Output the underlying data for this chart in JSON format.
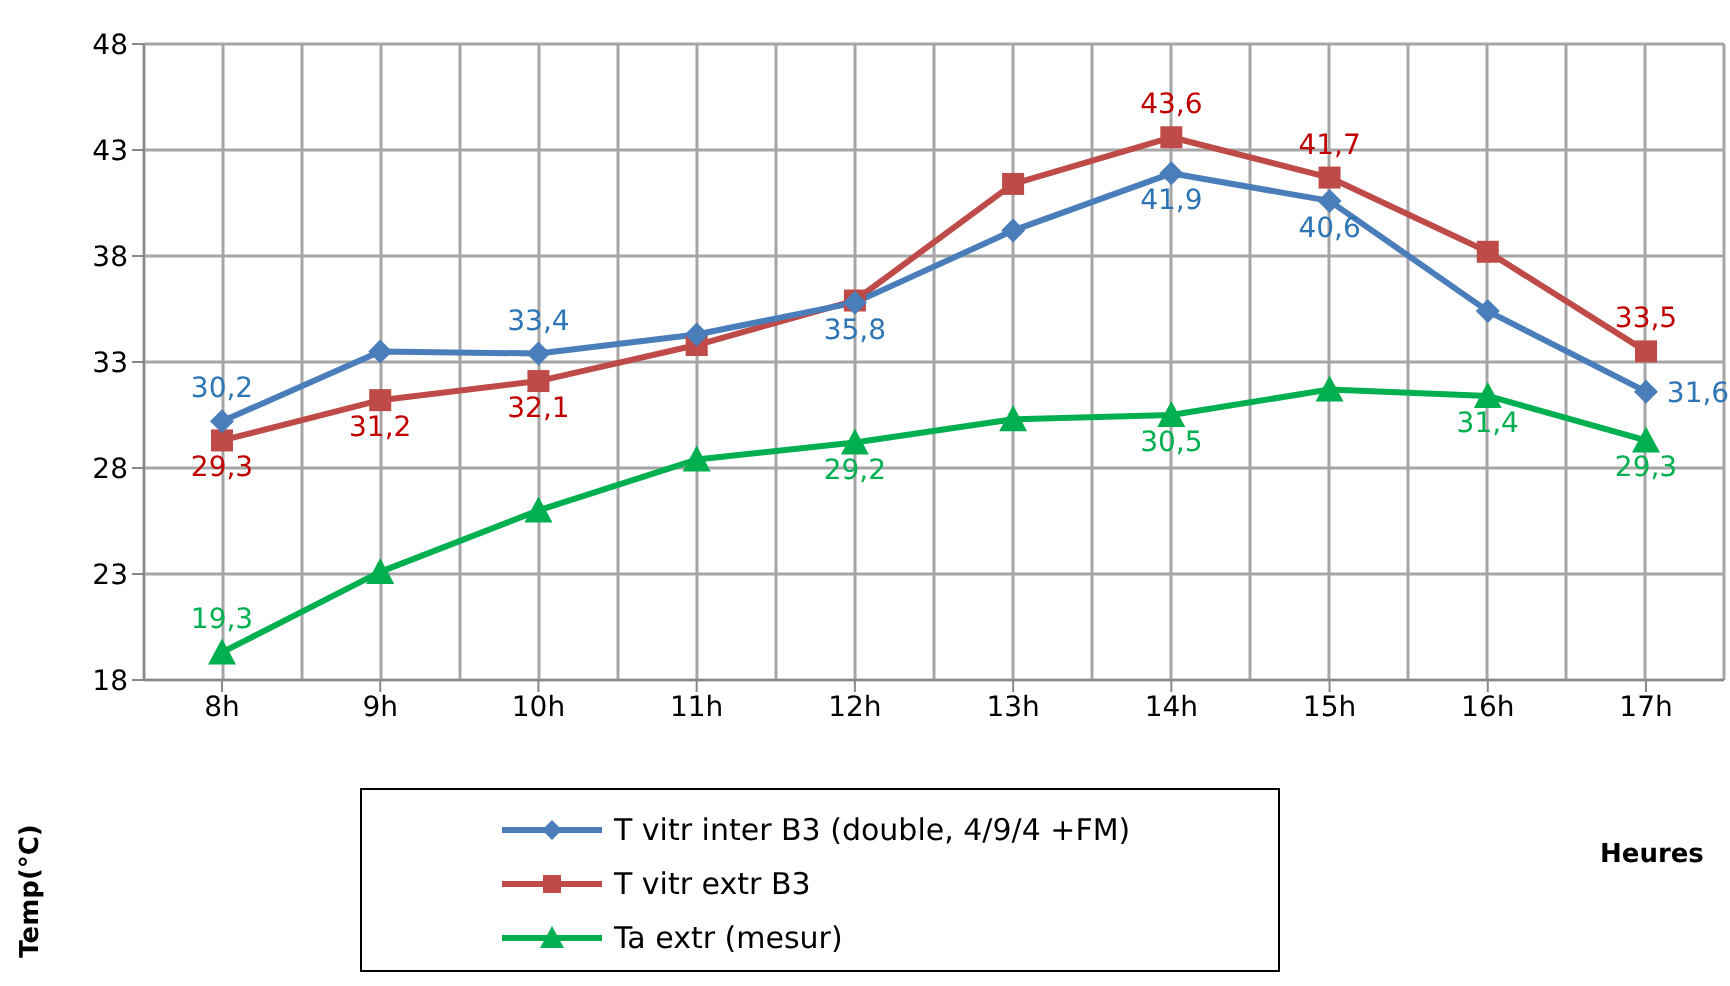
{
  "chart_data": {
    "type": "line",
    "xlabel": "Heures",
    "ylabel": "Temp(°C)",
    "categories": [
      "8h",
      "9h",
      "10h",
      "11h",
      "12h",
      "13h",
      "14h",
      "15h",
      "16h",
      "17h"
    ],
    "ylim": [
      18,
      48
    ],
    "yticks": [
      18,
      23,
      28,
      33,
      38,
      43,
      48
    ],
    "grid": true,
    "legend": "bottom",
    "series": [
      {
        "name": "T vitr inter B3 (double, 4/9/4 +FM)",
        "color": "#4a7ebb",
        "marker": "diamond",
        "values": [
          30.2,
          33.5,
          33.4,
          34.3,
          35.8,
          39.2,
          41.9,
          40.6,
          35.4,
          31.6
        ],
        "value_labels": [
          "30,2",
          null,
          "33,4",
          null,
          "35,8",
          null,
          "41,9",
          "40,6",
          null,
          "31,6"
        ]
      },
      {
        "name": "T vitr extr B3",
        "color": "#be4b48",
        "marker": "square",
        "values": [
          29.3,
          31.2,
          32.1,
          33.8,
          35.9,
          41.4,
          43.6,
          41.7,
          38.2,
          33.5
        ],
        "value_labels": [
          "29,3",
          "31,2",
          "32,1",
          null,
          null,
          null,
          "43,6",
          "41,7",
          null,
          "33,5"
        ]
      },
      {
        "name": "Ta extr (mesur)",
        "color": "#00b050",
        "marker": "triangle",
        "values": [
          19.3,
          23.1,
          26.0,
          28.4,
          29.2,
          30.3,
          30.5,
          31.7,
          31.4,
          29.3
        ],
        "value_labels": [
          "19,3",
          null,
          null,
          null,
          "29,2",
          null,
          "30,5",
          null,
          "31,4",
          "29,3"
        ]
      }
    ]
  }
}
